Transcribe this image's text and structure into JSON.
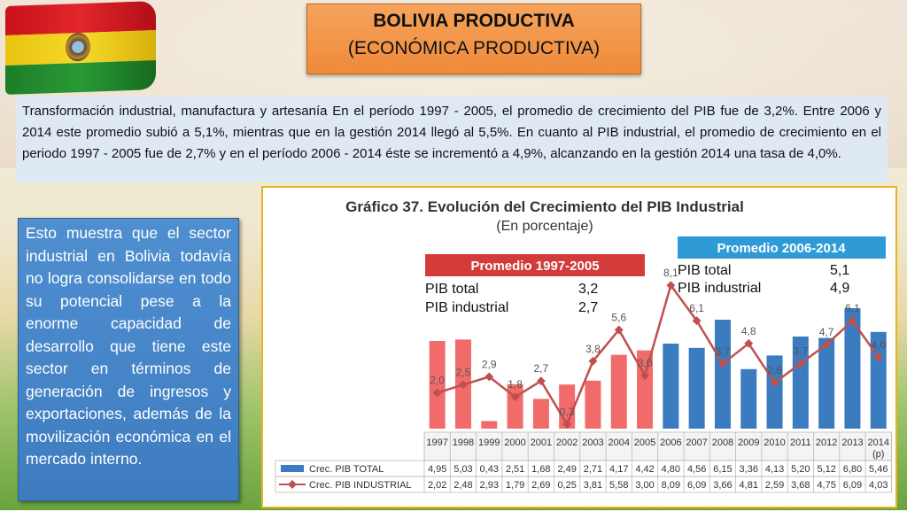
{
  "header": {
    "title_line1": "BOLIVIA PRODUCTIVA",
    "title_line2": "(ECONÓMICA PRODUCTIVA)"
  },
  "paragraph": "Transformación industrial, manufactura y artesanía En el período 1997 - 2005, el promedio de crecimiento del PIB fue de 3,2%. Entre 2006 y 2014 este promedio subió a 5,1%, mientras que en la gestión 2014 llegó al 5,5%. En cuanto al PIB industrial, el promedio de crecimiento en el periodo 1997 - 2005 fue de 2,7% y en el período 2006 - 2014 éste se incrementó a 4,9%, alcanzando en la gestión 2014 una tasa de 4,0%.",
  "side_text": "Esto muestra que el sector industrial en Bolivia todavía no logra consolidarse en todo su potencial pese a la enorme capacidad de desarrollo que tiene este sector en términos de generación de ingresos y exportaciones, además de la movilización económica en el mercado interno.",
  "colors": {
    "bar_1997_2005": "#f26b6b",
    "bar_2006_2014": "#3b7cc1",
    "line": "#c0504d",
    "promedio_1_header": "#d33b3b",
    "promedio_2_header": "#2e9bd6",
    "title_box": "#f29149",
    "side_box": "#4a8ad0"
  },
  "chart_data": {
    "type": "bar",
    "title": "Gráfico 37. Evolución del Crecimiento del PIB Industrial",
    "subtitle": "(En porcentaje)",
    "categories": [
      "1997",
      "1998",
      "1999",
      "2000",
      "2001",
      "2002",
      "2003",
      "2004",
      "2005",
      "2006",
      "2007",
      "2008",
      "2009",
      "2010",
      "2011",
      "2012",
      "2013",
      "2014 (p)"
    ],
    "series": [
      {
        "name": "Crec. PIB TOTAL",
        "kind": "bar",
        "values": [
          4.95,
          5.03,
          0.43,
          2.51,
          1.68,
          2.49,
          2.71,
          4.17,
          4.42,
          4.8,
          4.56,
          6.15,
          3.36,
          4.13,
          5.2,
          5.12,
          6.8,
          5.46
        ],
        "table_values": [
          "4,95",
          "5,03",
          "0,43",
          "2,51",
          "1,68",
          "2,49",
          "2,71",
          "4,17",
          "4,42",
          "4,80",
          "4,56",
          "6,15",
          "3,36",
          "4,13",
          "5,20",
          "5,12",
          "6,80",
          "5,46"
        ]
      },
      {
        "name": "Crec. PIB INDUSTRIAL",
        "kind": "line",
        "values": [
          2.02,
          2.48,
          2.93,
          1.79,
          2.69,
          0.25,
          3.81,
          5.58,
          3.0,
          8.09,
          6.09,
          3.66,
          4.81,
          2.59,
          3.68,
          4.75,
          6.09,
          4.03
        ],
        "table_values": [
          "2,02",
          "2,48",
          "2,93",
          "1,79",
          "2,69",
          "0,25",
          "3,81",
          "5,58",
          "3,00",
          "8,09",
          "6,09",
          "3,66",
          "4,81",
          "2,59",
          "3,68",
          "4,75",
          "6,09",
          "4,03"
        ],
        "point_labels": [
          "2,0",
          "2,5",
          "2,9",
          "1,8",
          "2,7",
          "0,3",
          "3,8",
          "5,6",
          "3,0",
          "8,1",
          "6,1",
          "3,7",
          "4,8",
          "2,6",
          "3,7",
          "4,7",
          "6,1",
          "4,0"
        ]
      }
    ],
    "ylim": [
      0,
      9
    ],
    "promedio_1997_2005": {
      "title": "Promedio 1997-2005",
      "rows": [
        {
          "label": "PIB total",
          "value": "3,2"
        },
        {
          "label": "PIB industrial",
          "value": "2,7"
        }
      ]
    },
    "promedio_2006_2014": {
      "title": "Promedio 2006-2014",
      "rows": [
        {
          "label": "PIB total",
          "value": "5,1"
        },
        {
          "label": "PIB industrial",
          "value": "4,9"
        }
      ]
    }
  }
}
